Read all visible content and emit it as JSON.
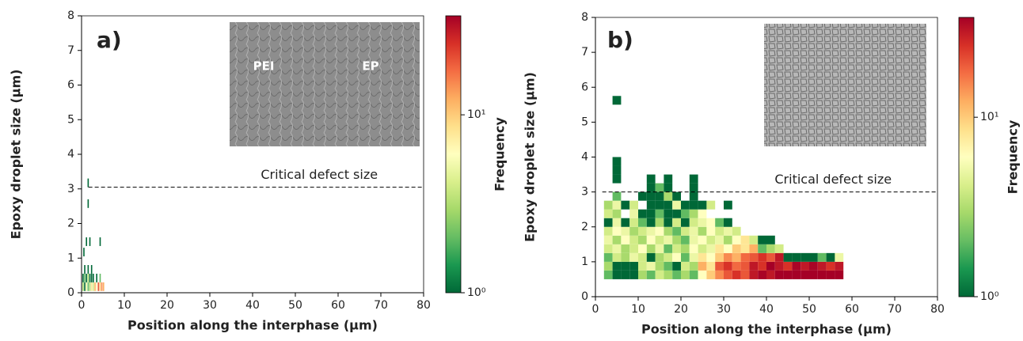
{
  "chart_data": [
    {
      "type": "heatmap",
      "panel_label": "a)",
      "xlabel": "Position along the interphase (µm)",
      "ylabel": "Epoxy droplet size (µm)",
      "colorbar_label": "Frequency",
      "xlim": [
        0,
        80
      ],
      "ylim": [
        0,
        8
      ],
      "xticks": [
        0,
        10,
        20,
        30,
        40,
        50,
        60,
        70,
        80
      ],
      "yticks": [
        0,
        1,
        2,
        3,
        4,
        5,
        6,
        7,
        8
      ],
      "clim": [
        1,
        36
      ],
      "log_color": true,
      "colormap": "RdYlGn_r",
      "cticks": [
        {
          "value": 1,
          "label": "10⁰"
        },
        {
          "value": 10,
          "label": "10¹"
        }
      ],
      "bin_size": [
        0.3,
        0.25
      ],
      "cells": [
        [
          0.2,
          0.05,
          3
        ],
        [
          0.6,
          0.05,
          1
        ],
        [
          1.0,
          0.05,
          5
        ],
        [
          1.4,
          0.05,
          2
        ],
        [
          1.8,
          0.05,
          3
        ],
        [
          2.2,
          0.05,
          8
        ],
        [
          2.6,
          0.05,
          4
        ],
        [
          3.0,
          0.05,
          12
        ],
        [
          3.4,
          0.05,
          6
        ],
        [
          3.8,
          0.05,
          20
        ],
        [
          4.2,
          0.05,
          10
        ],
        [
          4.6,
          0.05,
          15
        ],
        [
          5.0,
          0.05,
          12
        ],
        [
          0.2,
          0.3,
          1
        ],
        [
          0.6,
          0.3,
          2
        ],
        [
          1.0,
          0.3,
          1
        ],
        [
          1.4,
          0.3,
          3
        ],
        [
          1.8,
          0.3,
          1
        ],
        [
          2.2,
          0.3,
          1
        ],
        [
          2.6,
          0.3,
          1
        ],
        [
          3.4,
          0.3,
          1
        ],
        [
          4.2,
          0.3,
          2
        ],
        [
          0.6,
          0.55,
          1
        ],
        [
          1.4,
          0.55,
          1
        ],
        [
          2.2,
          0.55,
          1
        ],
        [
          0.4,
          1.05,
          1
        ],
        [
          1.0,
          1.35,
          1
        ],
        [
          1.8,
          1.35,
          1
        ],
        [
          4.2,
          1.35,
          1
        ],
        [
          1.4,
          2.45,
          1
        ],
        [
          1.4,
          3.05,
          1
        ]
      ],
      "critical_size": 3.05,
      "critical_label": "Critical defect size",
      "inset_labels": [
        "PEI",
        "EP"
      ]
    },
    {
      "type": "heatmap",
      "panel_label": "b)",
      "xlabel": "Position along the interphase (µm)",
      "ylabel": "Epoxy droplet size (µm)",
      "colorbar_label": "Frequency",
      "xlim": [
        0,
        80
      ],
      "ylim": [
        0,
        8
      ],
      "xticks": [
        0,
        10,
        20,
        30,
        40,
        50,
        60,
        70,
        80
      ],
      "yticks": [
        0,
        1,
        2,
        3,
        4,
        5,
        6,
        7,
        8
      ],
      "clim": [
        1,
        36
      ],
      "log_color": true,
      "colormap": "RdYlGn_r",
      "cticks": [
        {
          "value": 1,
          "label": "10⁰"
        },
        {
          "value": 10,
          "label": "10¹"
        }
      ],
      "bin_size": [
        2,
        0.25
      ],
      "cells": [
        [
          2,
          0.5,
          2
        ],
        [
          4,
          0.5,
          1
        ],
        [
          6,
          0.5,
          1
        ],
        [
          8,
          0.5,
          1
        ],
        [
          10,
          0.5,
          3
        ],
        [
          12,
          0.5,
          2
        ],
        [
          14,
          0.5,
          4
        ],
        [
          16,
          0.5,
          3
        ],
        [
          18,
          0.5,
          2
        ],
        [
          20,
          0.5,
          3
        ],
        [
          22,
          0.5,
          2
        ],
        [
          24,
          0.5,
          6
        ],
        [
          26,
          0.5,
          10
        ],
        [
          28,
          0.5,
          15
        ],
        [
          30,
          0.5,
          20
        ],
        [
          32,
          0.5,
          25
        ],
        [
          34,
          0.5,
          20
        ],
        [
          36,
          0.5,
          30
        ],
        [
          38,
          0.5,
          35
        ],
        [
          40,
          0.5,
          30
        ],
        [
          42,
          0.5,
          36
        ],
        [
          44,
          0.5,
          36
        ],
        [
          46,
          0.5,
          36
        ],
        [
          48,
          0.5,
          36
        ],
        [
          50,
          0.5,
          36
        ],
        [
          52,
          0.5,
          36
        ],
        [
          54,
          0.5,
          36
        ],
        [
          56,
          0.5,
          36
        ],
        [
          2,
          0.75,
          3
        ],
        [
          4,
          0.75,
          1
        ],
        [
          6,
          0.75,
          1
        ],
        [
          8,
          0.75,
          1
        ],
        [
          10,
          0.75,
          4
        ],
        [
          12,
          0.75,
          5
        ],
        [
          14,
          0.75,
          3
        ],
        [
          16,
          0.75,
          2
        ],
        [
          18,
          0.75,
          1
        ],
        [
          20,
          0.75,
          4
        ],
        [
          22,
          0.75,
          3
        ],
        [
          24,
          0.75,
          12
        ],
        [
          26,
          0.75,
          8
        ],
        [
          28,
          0.75,
          20
        ],
        [
          30,
          0.75,
          25
        ],
        [
          32,
          0.75,
          18
        ],
        [
          34,
          0.75,
          20
        ],
        [
          36,
          0.75,
          30
        ],
        [
          38,
          0.75,
          25
        ],
        [
          40,
          0.75,
          36
        ],
        [
          42,
          0.75,
          30
        ],
        [
          44,
          0.75,
          25
        ],
        [
          46,
          0.75,
          35
        ],
        [
          48,
          0.75,
          30
        ],
        [
          50,
          0.75,
          35
        ],
        [
          52,
          0.75,
          30
        ],
        [
          54,
          0.75,
          25
        ],
        [
          56,
          0.75,
          30
        ],
        [
          2,
          1.0,
          2
        ],
        [
          4,
          1.0,
          4
        ],
        [
          6,
          1.0,
          3
        ],
        [
          8,
          1.0,
          5
        ],
        [
          10,
          1.0,
          4
        ],
        [
          12,
          1.0,
          1
        ],
        [
          14,
          1.0,
          3
        ],
        [
          16,
          1.0,
          4
        ],
        [
          18,
          1.0,
          6
        ],
        [
          20,
          1.0,
          2
        ],
        [
          22,
          1.0,
          5
        ],
        [
          24,
          1.0,
          8
        ],
        [
          26,
          1.0,
          6
        ],
        [
          28,
          1.0,
          10
        ],
        [
          30,
          1.0,
          15
        ],
        [
          32,
          1.0,
          12
        ],
        [
          34,
          1.0,
          18
        ],
        [
          36,
          1.0,
          20
        ],
        [
          38,
          1.0,
          25
        ],
        [
          40,
          1.0,
          20
        ],
        [
          42,
          1.0,
          30
        ],
        [
          44,
          1.0,
          1
        ],
        [
          46,
          1.0,
          1
        ],
        [
          48,
          1.0,
          1
        ],
        [
          50,
          1.0,
          1
        ],
        [
          52,
          1.0,
          2
        ],
        [
          54,
          1.0,
          1
        ],
        [
          56,
          1.0,
          5
        ],
        [
          2,
          1.25,
          4
        ],
        [
          4,
          1.25,
          5
        ],
        [
          6,
          1.25,
          3
        ],
        [
          8,
          1.25,
          4
        ],
        [
          10,
          1.25,
          6
        ],
        [
          12,
          1.25,
          3
        ],
        [
          14,
          1.25,
          5
        ],
        [
          16,
          1.25,
          2
        ],
        [
          18,
          1.25,
          4
        ],
        [
          20,
          1.25,
          3
        ],
        [
          22,
          1.25,
          6
        ],
        [
          24,
          1.25,
          4
        ],
        [
          26,
          1.25,
          5
        ],
        [
          28,
          1.25,
          8
        ],
        [
          30,
          1.25,
          6
        ],
        [
          32,
          1.25,
          10
        ],
        [
          34,
          1.25,
          8
        ],
        [
          36,
          1.25,
          12
        ],
        [
          38,
          1.25,
          2
        ],
        [
          40,
          1.25,
          3
        ],
        [
          42,
          1.25,
          4
        ],
        [
          2,
          1.5,
          5
        ],
        [
          4,
          1.5,
          3
        ],
        [
          6,
          1.5,
          6
        ],
        [
          8,
          1.5,
          4
        ],
        [
          10,
          1.5,
          3
        ],
        [
          12,
          1.5,
          6
        ],
        [
          14,
          1.5,
          4
        ],
        [
          16,
          1.5,
          5
        ],
        [
          18,
          1.5,
          3
        ],
        [
          20,
          1.5,
          2
        ],
        [
          22,
          1.5,
          5
        ],
        [
          24,
          1.5,
          6
        ],
        [
          26,
          1.5,
          4
        ],
        [
          28,
          1.5,
          5
        ],
        [
          30,
          1.5,
          3
        ],
        [
          32,
          1.5,
          6
        ],
        [
          34,
          1.5,
          8
        ],
        [
          36,
          1.5,
          4
        ],
        [
          38,
          1.5,
          1
        ],
        [
          40,
          1.5,
          1
        ],
        [
          2,
          1.75,
          4
        ],
        [
          4,
          1.75,
          6
        ],
        [
          6,
          1.75,
          5
        ],
        [
          8,
          1.75,
          3
        ],
        [
          10,
          1.75,
          4
        ],
        [
          12,
          1.75,
          5
        ],
        [
          14,
          1.75,
          6
        ],
        [
          16,
          1.75,
          3
        ],
        [
          18,
          1.75,
          2
        ],
        [
          20,
          1.75,
          4
        ],
        [
          22,
          1.75,
          5
        ],
        [
          24,
          1.75,
          3
        ],
        [
          26,
          1.75,
          6
        ],
        [
          28,
          1.75,
          4
        ],
        [
          30,
          1.75,
          5
        ],
        [
          32,
          1.75,
          4
        ],
        [
          2,
          2.0,
          1
        ],
        [
          4,
          2.0,
          5
        ],
        [
          6,
          2.0,
          1
        ],
        [
          8,
          2.0,
          4
        ],
        [
          10,
          2.0,
          2
        ],
        [
          12,
          2.0,
          1
        ],
        [
          14,
          2.0,
          3
        ],
        [
          16,
          2.0,
          1
        ],
        [
          18,
          2.0,
          4
        ],
        [
          20,
          2.0,
          1
        ],
        [
          22,
          2.0,
          4
        ],
        [
          24,
          2.0,
          5
        ],
        [
          26,
          2.0,
          6
        ],
        [
          28,
          2.0,
          2
        ],
        [
          30,
          2.0,
          1
        ],
        [
          2,
          2.25,
          4
        ],
        [
          4,
          2.25,
          3
        ],
        [
          8,
          2.25,
          5
        ],
        [
          10,
          2.25,
          1
        ],
        [
          12,
          2.25,
          1
        ],
        [
          14,
          2.25,
          2
        ],
        [
          16,
          2.25,
          1
        ],
        [
          18,
          2.25,
          1
        ],
        [
          20,
          2.25,
          2
        ],
        [
          22,
          2.25,
          3
        ],
        [
          24,
          2.25,
          6
        ],
        [
          2,
          2.5,
          3
        ],
        [
          4,
          2.5,
          5
        ],
        [
          6,
          2.5,
          1
        ],
        [
          8,
          2.5,
          4
        ],
        [
          12,
          2.5,
          1
        ],
        [
          14,
          2.5,
          1
        ],
        [
          16,
          2.5,
          1
        ],
        [
          18,
          2.5,
          5
        ],
        [
          20,
          2.5,
          1
        ],
        [
          22,
          2.5,
          1
        ],
        [
          24,
          2.5,
          1
        ],
        [
          26,
          2.5,
          4
        ],
        [
          30,
          2.5,
          1
        ],
        [
          4,
          2.75,
          2
        ],
        [
          10,
          2.75,
          1
        ],
        [
          12,
          2.75,
          1
        ],
        [
          14,
          2.75,
          1
        ],
        [
          16,
          2.75,
          3
        ],
        [
          18,
          2.75,
          1
        ],
        [
          22,
          2.75,
          1
        ],
        [
          12,
          3.0,
          1
        ],
        [
          14,
          3.0,
          2
        ],
        [
          16,
          3.0,
          1
        ],
        [
          22,
          3.0,
          1
        ],
        [
          4,
          3.25,
          1
        ],
        [
          12,
          3.25,
          1
        ],
        [
          16,
          3.25,
          1
        ],
        [
          22,
          3.25,
          1
        ],
        [
          4,
          3.5,
          1
        ],
        [
          4,
          3.75,
          1
        ],
        [
          4,
          5.5,
          1
        ]
      ],
      "critical_size": 3.0,
      "critical_label": "Critical defect size"
    }
  ]
}
